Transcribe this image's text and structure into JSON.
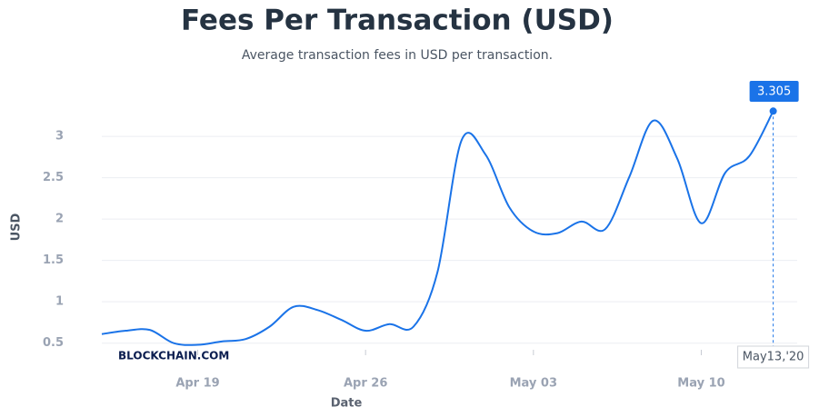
{
  "chart_data": {
    "type": "line",
    "title": "Fees Per Transaction (USD)",
    "subtitle": "Average transaction fees in USD per transaction.",
    "x_label": "Date",
    "y_label": "USD",
    "watermark": "BLOCKCHAIN.COM",
    "tooltip_x_label": "May13,'20",
    "x": [
      "2020-04-15",
      "2020-04-16",
      "2020-04-17",
      "2020-04-18",
      "2020-04-19",
      "2020-04-20",
      "2020-04-21",
      "2020-04-22",
      "2020-04-23",
      "2020-04-24",
      "2020-04-25",
      "2020-04-26",
      "2020-04-27",
      "2020-04-28",
      "2020-04-29",
      "2020-04-30",
      "2020-05-01",
      "2020-05-02",
      "2020-05-03",
      "2020-05-04",
      "2020-05-05",
      "2020-05-06",
      "2020-05-07",
      "2020-05-08",
      "2020-05-09",
      "2020-05-10",
      "2020-05-11",
      "2020-05-12",
      "2020-05-13"
    ],
    "series": [
      {
        "color": "#1a73e8",
        "values": [
          0.61,
          0.65,
          0.66,
          0.5,
          0.48,
          0.52,
          0.55,
          0.7,
          0.94,
          0.9,
          0.78,
          0.65,
          0.73,
          0.7,
          1.36,
          2.95,
          2.78,
          2.14,
          1.85,
          1.83,
          1.97,
          1.88,
          2.51,
          3.19,
          2.73,
          1.95,
          2.56,
          2.76,
          3.305
        ]
      }
    ],
    "xlim": [
      "2020-04-15",
      "2020-05-14"
    ],
    "xticks": [
      {
        "value": "2020-04-19",
        "label": "Apr 19"
      },
      {
        "value": "2020-04-26",
        "label": "Apr 26"
      },
      {
        "value": "2020-05-03",
        "label": "May 03"
      },
      {
        "value": "2020-05-10",
        "label": "May 10"
      }
    ],
    "ylim": [
      0.42,
      3.44
    ],
    "yticks": [
      0.5,
      1,
      1.5,
      2,
      2.5,
      3
    ],
    "grid": true
  }
}
